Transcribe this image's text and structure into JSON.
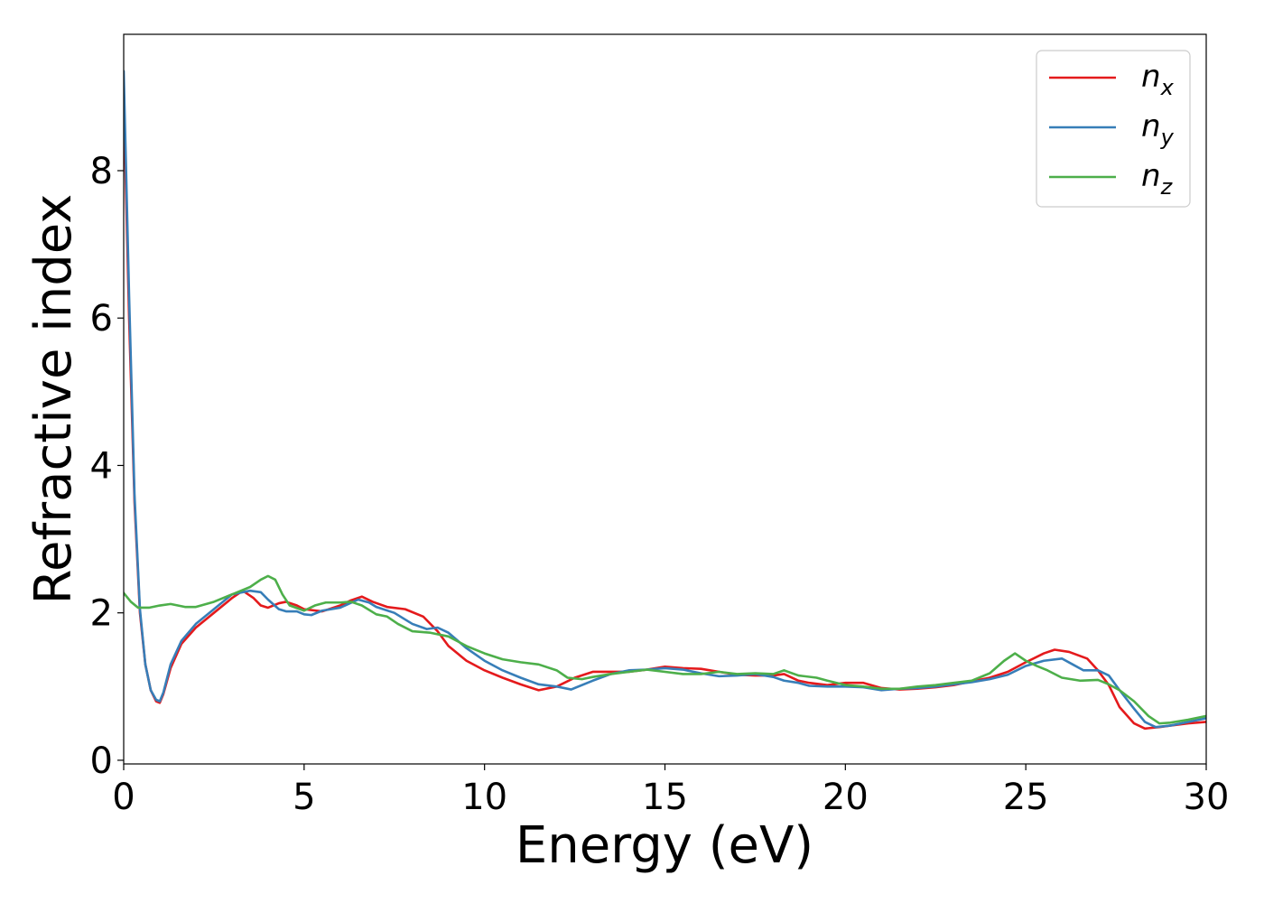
{
  "chart_data": {
    "type": "line",
    "xlabel": "Energy (eV)",
    "ylabel": "Refractive index",
    "xlim": [
      0,
      30
    ],
    "ylim": [
      -0.05,
      9.85
    ],
    "xticks": [
      "0",
      "5",
      "10",
      "15",
      "20",
      "25",
      "30"
    ],
    "yticks": [
      "0",
      "2",
      "4",
      "6",
      "8"
    ],
    "grid": false,
    "legend_position": "top-right",
    "series": [
      {
        "name": "n",
        "subscript": "x",
        "color": "#e41a1c",
        "points": [
          [
            0,
            9.0
          ],
          [
            0.15,
            6.0
          ],
          [
            0.3,
            3.5
          ],
          [
            0.45,
            2.0
          ],
          [
            0.6,
            1.3
          ],
          [
            0.75,
            0.95
          ],
          [
            0.9,
            0.8
          ],
          [
            1.0,
            0.78
          ],
          [
            1.1,
            0.9
          ],
          [
            1.3,
            1.25
          ],
          [
            1.6,
            1.58
          ],
          [
            2.0,
            1.8
          ],
          [
            2.5,
            2.0
          ],
          [
            3.0,
            2.2
          ],
          [
            3.3,
            2.3
          ],
          [
            3.6,
            2.2
          ],
          [
            3.8,
            2.1
          ],
          [
            4.0,
            2.07
          ],
          [
            4.3,
            2.13
          ],
          [
            4.5,
            2.15
          ],
          [
            4.8,
            2.1
          ],
          [
            5.0,
            2.05
          ],
          [
            5.5,
            2.02
          ],
          [
            6.0,
            2.1
          ],
          [
            6.3,
            2.17
          ],
          [
            6.6,
            2.22
          ],
          [
            6.9,
            2.15
          ],
          [
            7.3,
            2.08
          ],
          [
            7.8,
            2.05
          ],
          [
            8.3,
            1.95
          ],
          [
            8.7,
            1.75
          ],
          [
            9.0,
            1.55
          ],
          [
            9.5,
            1.35
          ],
          [
            10.0,
            1.22
          ],
          [
            10.5,
            1.12
          ],
          [
            11.0,
            1.03
          ],
          [
            11.5,
            0.95
          ],
          [
            12.0,
            1.0
          ],
          [
            12.5,
            1.12
          ],
          [
            13.0,
            1.2
          ],
          [
            13.5,
            1.2
          ],
          [
            14.0,
            1.2
          ],
          [
            14.5,
            1.23
          ],
          [
            15.0,
            1.27
          ],
          [
            15.5,
            1.25
          ],
          [
            16.0,
            1.24
          ],
          [
            16.5,
            1.2
          ],
          [
            17.0,
            1.16
          ],
          [
            17.5,
            1.15
          ],
          [
            18.0,
            1.15
          ],
          [
            18.3,
            1.17
          ],
          [
            18.7,
            1.08
          ],
          [
            19.0,
            1.05
          ],
          [
            19.5,
            1.02
          ],
          [
            20.0,
            1.05
          ],
          [
            20.5,
            1.05
          ],
          [
            21.0,
            0.98
          ],
          [
            21.5,
            0.96
          ],
          [
            22.0,
            0.97
          ],
          [
            22.5,
            0.99
          ],
          [
            23.0,
            1.02
          ],
          [
            23.5,
            1.07
          ],
          [
            24.0,
            1.12
          ],
          [
            24.5,
            1.2
          ],
          [
            25.0,
            1.33
          ],
          [
            25.5,
            1.45
          ],
          [
            25.8,
            1.5
          ],
          [
            26.2,
            1.47
          ],
          [
            26.7,
            1.38
          ],
          [
            27.0,
            1.22
          ],
          [
            27.3,
            1.02
          ],
          [
            27.6,
            0.72
          ],
          [
            28.0,
            0.5
          ],
          [
            28.3,
            0.43
          ],
          [
            28.7,
            0.45
          ],
          [
            29.0,
            0.47
          ],
          [
            29.5,
            0.5
          ],
          [
            30.0,
            0.52
          ]
        ]
      },
      {
        "name": "n",
        "subscript": "y",
        "color": "#377eb8",
        "points": [
          [
            0,
            9.35
          ],
          [
            0.15,
            6.3
          ],
          [
            0.3,
            3.6
          ],
          [
            0.45,
            2.05
          ],
          [
            0.6,
            1.3
          ],
          [
            0.75,
            0.95
          ],
          [
            0.9,
            0.82
          ],
          [
            1.0,
            0.8
          ],
          [
            1.1,
            0.92
          ],
          [
            1.3,
            1.3
          ],
          [
            1.6,
            1.62
          ],
          [
            2.0,
            1.85
          ],
          [
            2.5,
            2.05
          ],
          [
            3.0,
            2.25
          ],
          [
            3.5,
            2.3
          ],
          [
            3.8,
            2.28
          ],
          [
            4.0,
            2.18
          ],
          [
            4.3,
            2.05
          ],
          [
            4.5,
            2.02
          ],
          [
            4.8,
            2.02
          ],
          [
            5.0,
            1.98
          ],
          [
            5.2,
            1.97
          ],
          [
            5.5,
            2.03
          ],
          [
            6.0,
            2.07
          ],
          [
            6.5,
            2.18
          ],
          [
            6.8,
            2.14
          ],
          [
            7.0,
            2.08
          ],
          [
            7.5,
            2.0
          ],
          [
            8.0,
            1.85
          ],
          [
            8.4,
            1.78
          ],
          [
            8.7,
            1.8
          ],
          [
            9.0,
            1.73
          ],
          [
            9.5,
            1.52
          ],
          [
            10.0,
            1.35
          ],
          [
            10.5,
            1.22
          ],
          [
            11.0,
            1.12
          ],
          [
            11.5,
            1.03
          ],
          [
            12.0,
            1.0
          ],
          [
            12.4,
            0.96
          ],
          [
            13.0,
            1.08
          ],
          [
            13.5,
            1.17
          ],
          [
            14.0,
            1.22
          ],
          [
            14.5,
            1.23
          ],
          [
            15.0,
            1.25
          ],
          [
            15.5,
            1.23
          ],
          [
            16.0,
            1.18
          ],
          [
            16.5,
            1.14
          ],
          [
            17.0,
            1.15
          ],
          [
            17.5,
            1.17
          ],
          [
            18.0,
            1.13
          ],
          [
            18.3,
            1.08
          ],
          [
            18.7,
            1.05
          ],
          [
            19.0,
            1.01
          ],
          [
            19.5,
            1.0
          ],
          [
            20.0,
            1.0
          ],
          [
            20.5,
            0.99
          ],
          [
            21.0,
            0.95
          ],
          [
            21.5,
            0.97
          ],
          [
            22.0,
            0.98
          ],
          [
            22.5,
            1.0
          ],
          [
            23.0,
            1.03
          ],
          [
            23.5,
            1.06
          ],
          [
            24.0,
            1.1
          ],
          [
            24.5,
            1.16
          ],
          [
            25.0,
            1.28
          ],
          [
            25.5,
            1.35
          ],
          [
            26.0,
            1.38
          ],
          [
            26.3,
            1.3
          ],
          [
            26.6,
            1.22
          ],
          [
            27.0,
            1.22
          ],
          [
            27.3,
            1.15
          ],
          [
            27.6,
            0.95
          ],
          [
            28.0,
            0.7
          ],
          [
            28.3,
            0.52
          ],
          [
            28.6,
            0.45
          ],
          [
            29.0,
            0.47
          ],
          [
            29.5,
            0.52
          ],
          [
            30.0,
            0.57
          ]
        ]
      },
      {
        "name": "n",
        "subscript": "z",
        "color": "#4daf4a",
        "points": [
          [
            0,
            2.27
          ],
          [
            0.2,
            2.15
          ],
          [
            0.4,
            2.07
          ],
          [
            0.7,
            2.07
          ],
          [
            1.0,
            2.1
          ],
          [
            1.3,
            2.12
          ],
          [
            1.7,
            2.08
          ],
          [
            2.0,
            2.08
          ],
          [
            2.5,
            2.15
          ],
          [
            3.0,
            2.25
          ],
          [
            3.5,
            2.35
          ],
          [
            3.8,
            2.45
          ],
          [
            4.0,
            2.5
          ],
          [
            4.2,
            2.45
          ],
          [
            4.4,
            2.25
          ],
          [
            4.6,
            2.1
          ],
          [
            5.0,
            2.03
          ],
          [
            5.3,
            2.1
          ],
          [
            5.6,
            2.14
          ],
          [
            6.0,
            2.14
          ],
          [
            6.3,
            2.15
          ],
          [
            6.6,
            2.1
          ],
          [
            7.0,
            1.98
          ],
          [
            7.3,
            1.95
          ],
          [
            7.6,
            1.85
          ],
          [
            8.0,
            1.75
          ],
          [
            8.5,
            1.73
          ],
          [
            9.0,
            1.68
          ],
          [
            9.5,
            1.55
          ],
          [
            10.0,
            1.45
          ],
          [
            10.5,
            1.37
          ],
          [
            11.0,
            1.33
          ],
          [
            11.5,
            1.3
          ],
          [
            12.0,
            1.22
          ],
          [
            12.3,
            1.12
          ],
          [
            12.7,
            1.1
          ],
          [
            13.0,
            1.13
          ],
          [
            13.5,
            1.17
          ],
          [
            14.0,
            1.2
          ],
          [
            14.5,
            1.23
          ],
          [
            15.0,
            1.2
          ],
          [
            15.5,
            1.17
          ],
          [
            16.0,
            1.17
          ],
          [
            16.5,
            1.2
          ],
          [
            17.0,
            1.17
          ],
          [
            17.5,
            1.18
          ],
          [
            18.0,
            1.17
          ],
          [
            18.3,
            1.22
          ],
          [
            18.7,
            1.15
          ],
          [
            19.2,
            1.12
          ],
          [
            19.5,
            1.08
          ],
          [
            20.0,
            1.02
          ],
          [
            20.5,
            1.0
          ],
          [
            21.0,
            0.97
          ],
          [
            21.5,
            0.97
          ],
          [
            22.0,
            1.0
          ],
          [
            22.5,
            1.02
          ],
          [
            23.0,
            1.05
          ],
          [
            23.5,
            1.08
          ],
          [
            24.0,
            1.18
          ],
          [
            24.4,
            1.35
          ],
          [
            24.7,
            1.45
          ],
          [
            25.0,
            1.35
          ],
          [
            25.3,
            1.28
          ],
          [
            25.6,
            1.22
          ],
          [
            26.0,
            1.12
          ],
          [
            26.5,
            1.08
          ],
          [
            27.0,
            1.09
          ],
          [
            27.3,
            1.03
          ],
          [
            27.6,
            0.95
          ],
          [
            28.0,
            0.8
          ],
          [
            28.4,
            0.6
          ],
          [
            28.7,
            0.5
          ],
          [
            29.0,
            0.51
          ],
          [
            29.5,
            0.55
          ],
          [
            30.0,
            0.6
          ]
        ]
      }
    ]
  }
}
